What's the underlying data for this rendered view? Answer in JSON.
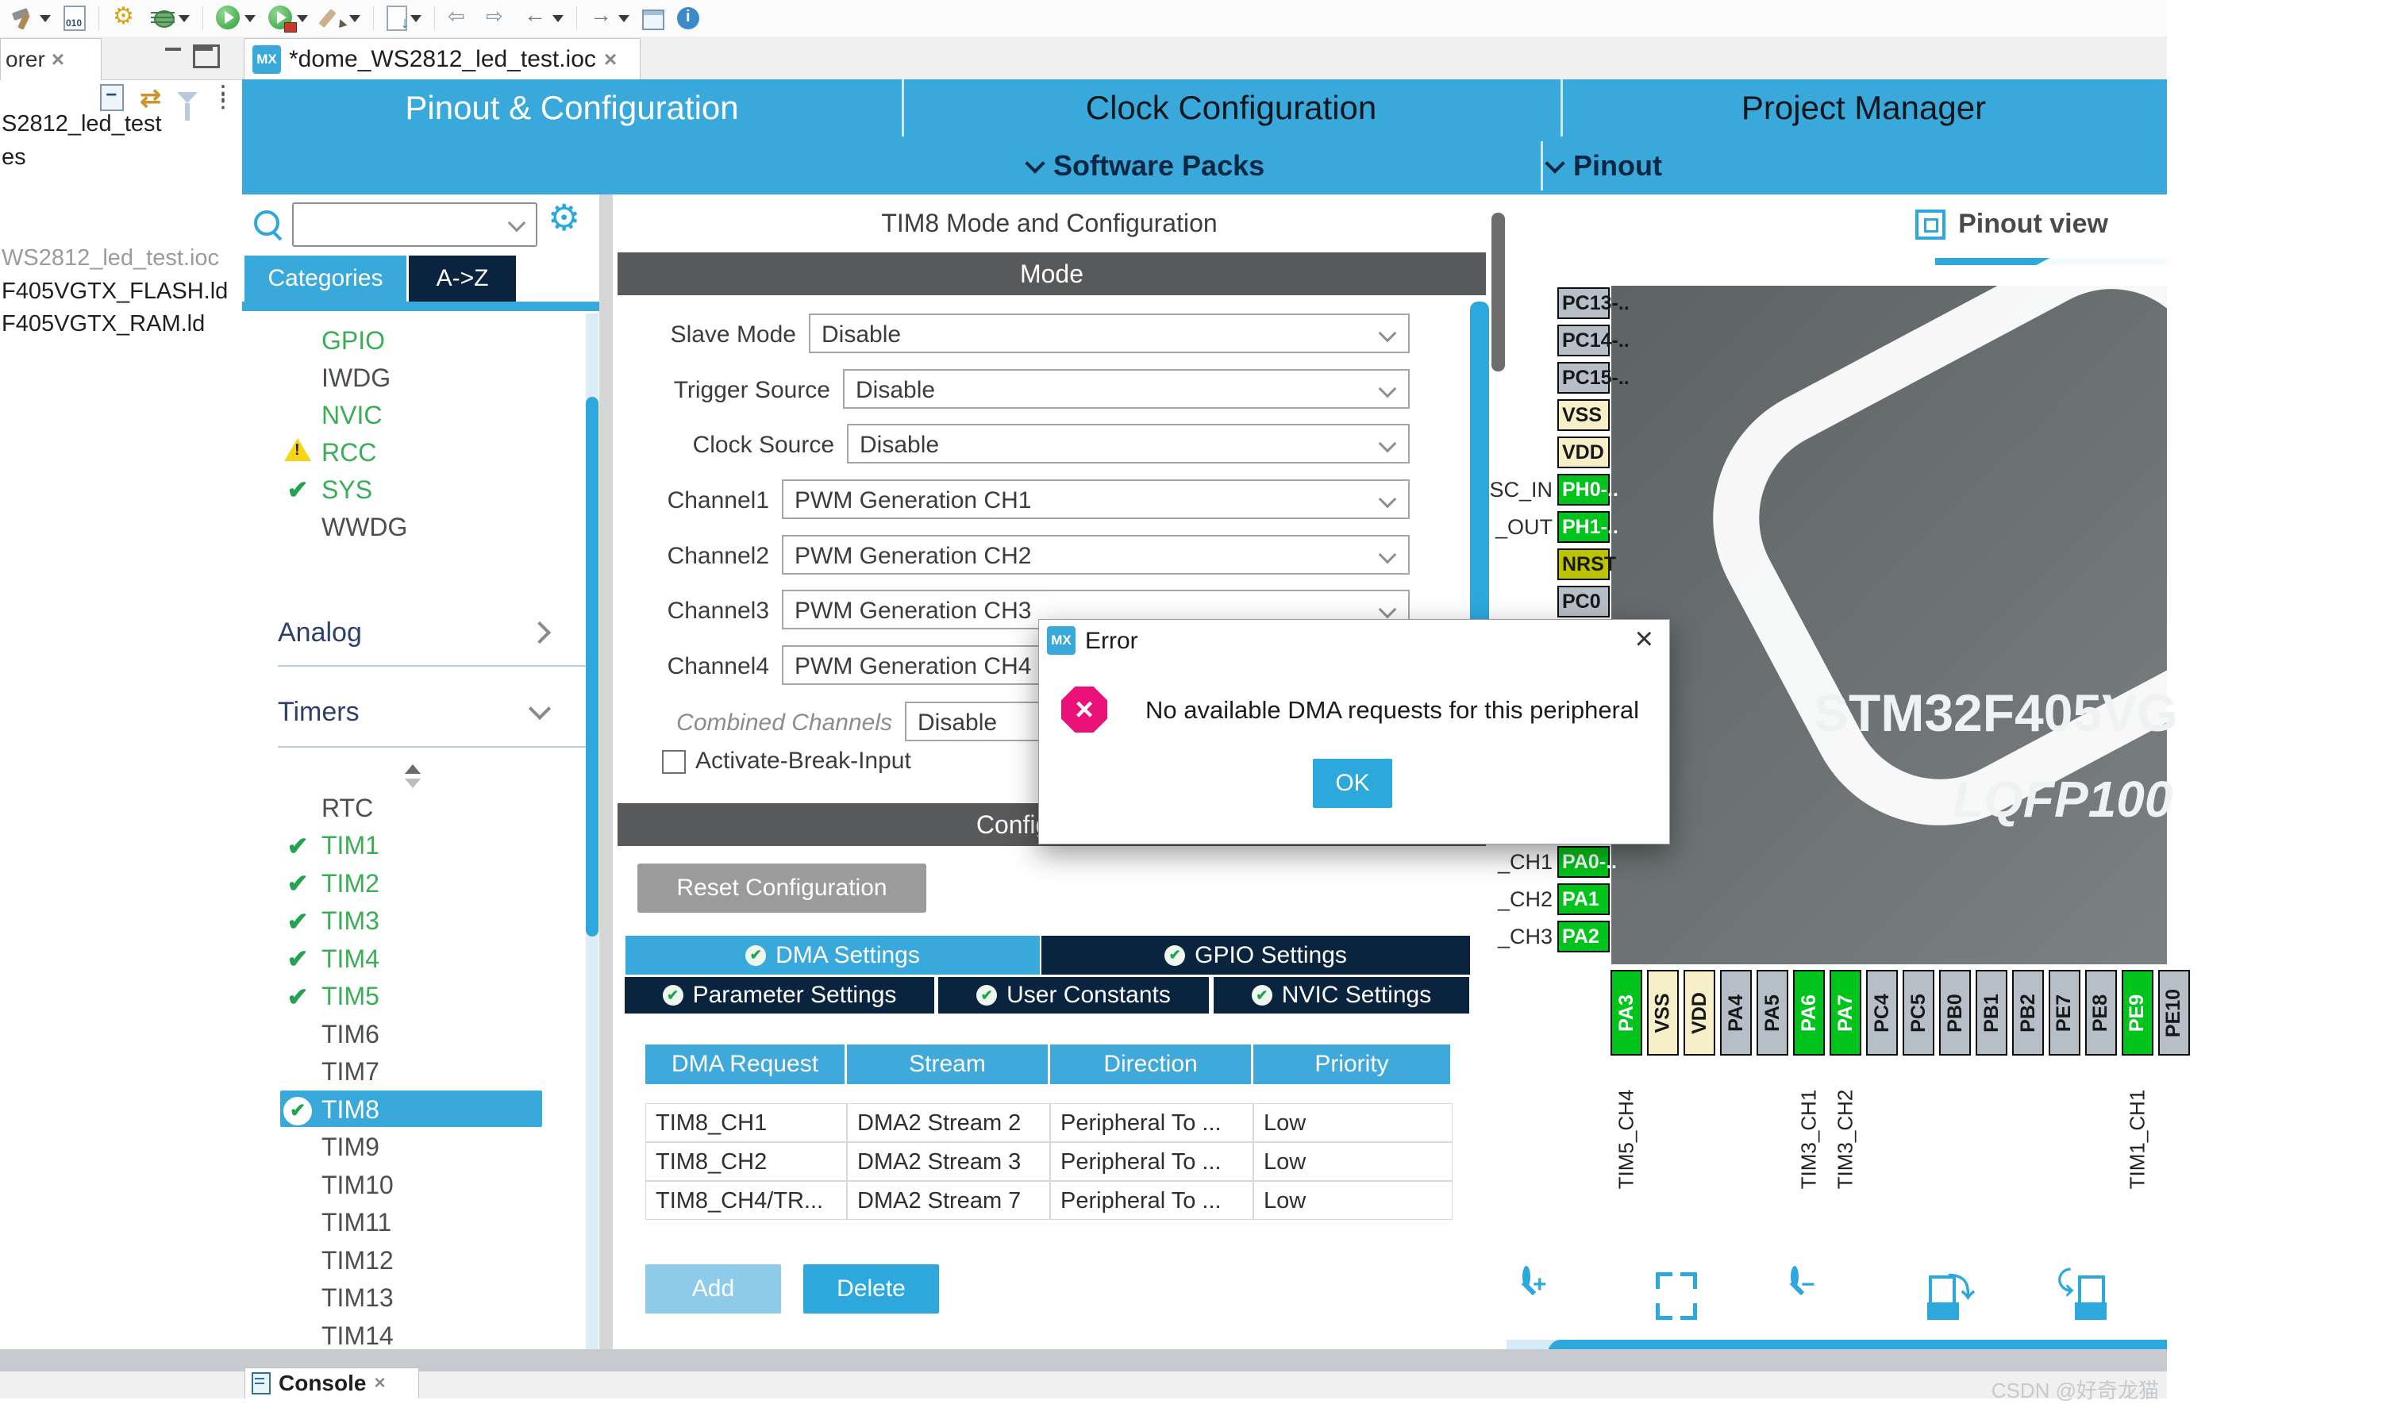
{
  "badges": {
    "mx": "MX"
  },
  "toolbar": {
    "icons": [
      {
        "name": "build-hammer-icon",
        "caret": true
      },
      {
        "name": "binary-file-icon",
        "caret": false
      },
      {
        "name": "drill-icon",
        "caret": false
      },
      {
        "name": "debug-icon",
        "caret": true
      },
      {
        "name": "run-icon",
        "caret": true
      },
      {
        "name": "external-tools-icon",
        "caret": true
      },
      {
        "name": "highlighter-icon",
        "caret": true
      },
      {
        "name": "import-file-icon",
        "caret": true
      },
      {
        "name": "prev-annotation-icon",
        "caret": false
      },
      {
        "name": "next-annotation-icon",
        "caret": false
      },
      {
        "name": "back-icon",
        "caret": true
      },
      {
        "name": "forward-icon",
        "caret": true
      },
      {
        "name": "open-perspective-icon",
        "caret": false
      },
      {
        "name": "info-icon",
        "caret": false
      }
    ]
  },
  "explorer": {
    "tab_label": "orer",
    "close_glyph": "×",
    "items": [
      {
        "label": "S2812_led_test",
        "tone": "dark"
      },
      {
        "label": "es",
        "tone": "dark"
      },
      {
        "label": "WS2812_led_test.ioc",
        "tone": "muted"
      },
      {
        "label": "F405VGTX_FLASH.ld",
        "tone": "dark"
      },
      {
        "label": "F405VGTX_RAM.ld",
        "tone": "dark"
      }
    ]
  },
  "editor": {
    "tab_label": "*dome_WS2812_led_test.ioc"
  },
  "cubemx": {
    "main_tabs": [
      {
        "label": "Pinout & Configuration",
        "active": true
      },
      {
        "label": "Clock Configuration",
        "active": false
      },
      {
        "label": "Project Manager",
        "active": false
      }
    ],
    "software_packs_label": "Software Packs",
    "pinout_label": "Pinout"
  },
  "sidebar": {
    "search_value": "",
    "tabs": {
      "categories": "Categories",
      "az": "A->Z"
    },
    "system_core": [
      {
        "label": "GPIO",
        "tone": "green",
        "badge": ""
      },
      {
        "label": "IWDG",
        "tone": "gray",
        "badge": ""
      },
      {
        "label": "NVIC",
        "tone": "green",
        "badge": ""
      },
      {
        "label": "RCC",
        "tone": "green",
        "badge": "warning"
      },
      {
        "label": "SYS",
        "tone": "green",
        "badge": "check"
      },
      {
        "label": "WWDG",
        "tone": "gray",
        "badge": ""
      }
    ],
    "sections": [
      {
        "label": "Analog",
        "state": "collapsed"
      },
      {
        "label": "Timers",
        "state": "expanded"
      }
    ],
    "timers": [
      {
        "label": "RTC",
        "state": "plain"
      },
      {
        "label": "TIM1",
        "state": "checked"
      },
      {
        "label": "TIM2",
        "state": "checked"
      },
      {
        "label": "TIM3",
        "state": "checked"
      },
      {
        "label": "TIM4",
        "state": "checked"
      },
      {
        "label": "TIM5",
        "state": "checked"
      },
      {
        "label": "TIM6",
        "state": "plain"
      },
      {
        "label": "TIM7",
        "state": "plain"
      },
      {
        "label": "TIM8",
        "state": "selected"
      },
      {
        "label": "TIM9",
        "state": "plain"
      },
      {
        "label": "TIM10",
        "state": "plain"
      },
      {
        "label": "TIM11",
        "state": "plain"
      },
      {
        "label": "TIM12",
        "state": "plain"
      },
      {
        "label": "TIM13",
        "state": "plain"
      },
      {
        "label": "TIM14",
        "state": "plain"
      }
    ]
  },
  "mode_panel": {
    "title": "TIM8 Mode and Configuration",
    "mode_header": "Mode",
    "config_header": "Configuration",
    "fields": [
      {
        "label": "Slave Mode",
        "value": "Disable",
        "italic": false
      },
      {
        "label": "Trigger Source",
        "value": "Disable",
        "italic": false
      },
      {
        "label": "Clock Source",
        "value": "Disable",
        "italic": false
      },
      {
        "label": "Channel1",
        "value": "PWM Generation CH1",
        "italic": false
      },
      {
        "label": "Channel2",
        "value": "PWM Generation CH2",
        "italic": false
      },
      {
        "label": "Channel3",
        "value": "PWM Generation CH3",
        "italic": false
      },
      {
        "label": "Channel4",
        "value": "PWM Generation CH4",
        "italic": false
      },
      {
        "label": "Combined Channels",
        "value": "Disable",
        "italic": true
      }
    ],
    "checkbox_label": "Activate-Break-Input"
  },
  "config": {
    "reset_button": "Reset Configuration",
    "tabs_row1": [
      {
        "label": "DMA Settings",
        "active": true
      },
      {
        "label": "GPIO Settings",
        "active": false
      }
    ],
    "tabs_row2": [
      {
        "label": "Parameter Settings"
      },
      {
        "label": "User Constants"
      },
      {
        "label": "NVIC Settings"
      }
    ],
    "table": {
      "headers": [
        "DMA Request",
        "Stream",
        "Direction",
        "Priority"
      ],
      "rows": [
        [
          "TIM8_CH1",
          "DMA2 Stream 2",
          "Peripheral To ...",
          "Low"
        ],
        [
          "TIM8_CH2",
          "DMA2 Stream 3",
          "Peripheral To ...",
          "Low"
        ],
        [
          "TIM8_CH4/TR...",
          "DMA2 Stream 7",
          "Peripheral To ...",
          "Low"
        ]
      ]
    },
    "add_button": "Add",
    "delete_button": "Delete"
  },
  "dialog": {
    "title": "Error",
    "message": "No available DMA requests for this peripheral",
    "ok_button": "OK",
    "close_glyph": "×"
  },
  "pinout": {
    "header": "Pinout view",
    "chip_name": "STM32F405VG",
    "package": "LQFP100",
    "left_pins_top": [
      {
        "label": "PC13-..",
        "type": "default"
      },
      {
        "label": "PC14-..",
        "type": "default"
      },
      {
        "label": "PC15-..",
        "type": "default"
      },
      {
        "label": "VSS",
        "type": "power"
      },
      {
        "label": "VDD",
        "type": "power"
      },
      {
        "label": "PH0-..",
        "type": "signal"
      },
      {
        "label": "PH1-..",
        "type": "signal"
      },
      {
        "label": "NRST",
        "type": "reset"
      },
      {
        "label": "PC0",
        "type": "default"
      }
    ],
    "left_pins_bottom": [
      {
        "label": "PA0-..",
        "type": "signal"
      },
      {
        "label": "PA1",
        "type": "signal"
      },
      {
        "label": "PA2",
        "type": "signal"
      }
    ],
    "left_labels_top": [
      {
        "text": "SC_IN",
        "row": 5
      },
      {
        "text": "_OUT",
        "row": 6
      }
    ],
    "left_labels_bottom": [
      {
        "text": "_CH1",
        "row": 0
      },
      {
        "text": "_CH2",
        "row": 1
      },
      {
        "text": "_CH3",
        "row": 2
      }
    ],
    "bottom_pins": [
      {
        "label": "PA3",
        "type": "signal"
      },
      {
        "label": "VSS",
        "type": "power"
      },
      {
        "label": "VDD",
        "type": "power"
      },
      {
        "label": "PA4",
        "type": "default"
      },
      {
        "label": "PA5",
        "type": "default"
      },
      {
        "label": "PA6",
        "type": "signal"
      },
      {
        "label": "PA7",
        "type": "signal"
      },
      {
        "label": "PC4",
        "type": "default"
      },
      {
        "label": "PC5",
        "type": "default"
      },
      {
        "label": "PB0",
        "type": "default"
      },
      {
        "label": "PB1",
        "type": "default"
      },
      {
        "label": "PB2",
        "type": "default"
      },
      {
        "label": "PE7",
        "type": "default"
      },
      {
        "label": "PE8",
        "type": "default"
      },
      {
        "label": "PE9",
        "type": "signal"
      },
      {
        "label": "PE10",
        "type": "default"
      }
    ],
    "bottom_labels": [
      {
        "text": "TIM5_CH4",
        "pin": 0
      },
      {
        "text": "TIM3_CH1",
        "pin": 5
      },
      {
        "text": "TIM3_CH2",
        "pin": 6
      },
      {
        "text": "TIM1_CH1",
        "pin": 14
      }
    ]
  },
  "console": {
    "tab_label": "Console"
  },
  "footer": {
    "watermark": "CSDN @好奇龙猫"
  },
  "colors": {
    "accent_blue": "#39a9dc",
    "scroll_blue": "#2da8dd",
    "navy": "#0a2440",
    "header_gray": "#58595b",
    "pin_green": "#00c41c",
    "pin_power": "#f6efc7",
    "pin_reset": "#bcc400",
    "pin_gray": "#b6bfc7",
    "warning_yellow": "#f7d417",
    "error_magenta": "#ea1178"
  }
}
